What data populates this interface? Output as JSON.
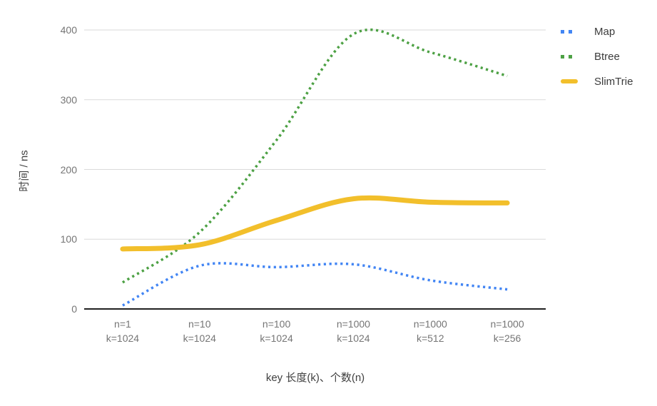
{
  "chart_data": {
    "type": "line",
    "title": "",
    "xlabel": "key 长度(k)、个数(n)",
    "ylabel": "时间 / ns",
    "ylim": [
      0,
      400
    ],
    "y_ticks": [
      0,
      100,
      200,
      300,
      400
    ],
    "grid": true,
    "legend_position": "right",
    "categories": [
      {
        "line1": "n=1",
        "line2": "k=1024"
      },
      {
        "line1": "n=10",
        "line2": "k=1024"
      },
      {
        "line1": "n=100",
        "line2": "k=1024"
      },
      {
        "line1": "n=1000",
        "line2": "k=1024"
      },
      {
        "line1": "n=1000",
        "line2": "k=512"
      },
      {
        "line1": "n=1000",
        "line2": "k=256"
      }
    ],
    "series": [
      {
        "name": "Map",
        "color": "#4285f4",
        "style": "dotted",
        "line_width": 3.5,
        "values": [
          5,
          62,
          60,
          64,
          41,
          28
        ]
      },
      {
        "name": "Btree",
        "color": "#4da144",
        "style": "dotted",
        "line_width": 3.5,
        "values": [
          38,
          110,
          242,
          394,
          368,
          334
        ]
      },
      {
        "name": "SlimTrie",
        "color": "#f2bf2b",
        "style": "solid",
        "line_width": 7,
        "values": [
          86,
          92,
          127,
          158,
          153,
          152
        ]
      }
    ],
    "colors": {
      "grid_line": "#dadada",
      "baseline": "#212121",
      "tick_label": "#757575",
      "axis_title": "#404040",
      "legend_text": "#3c3c3c",
      "background": "#ffffff"
    }
  }
}
